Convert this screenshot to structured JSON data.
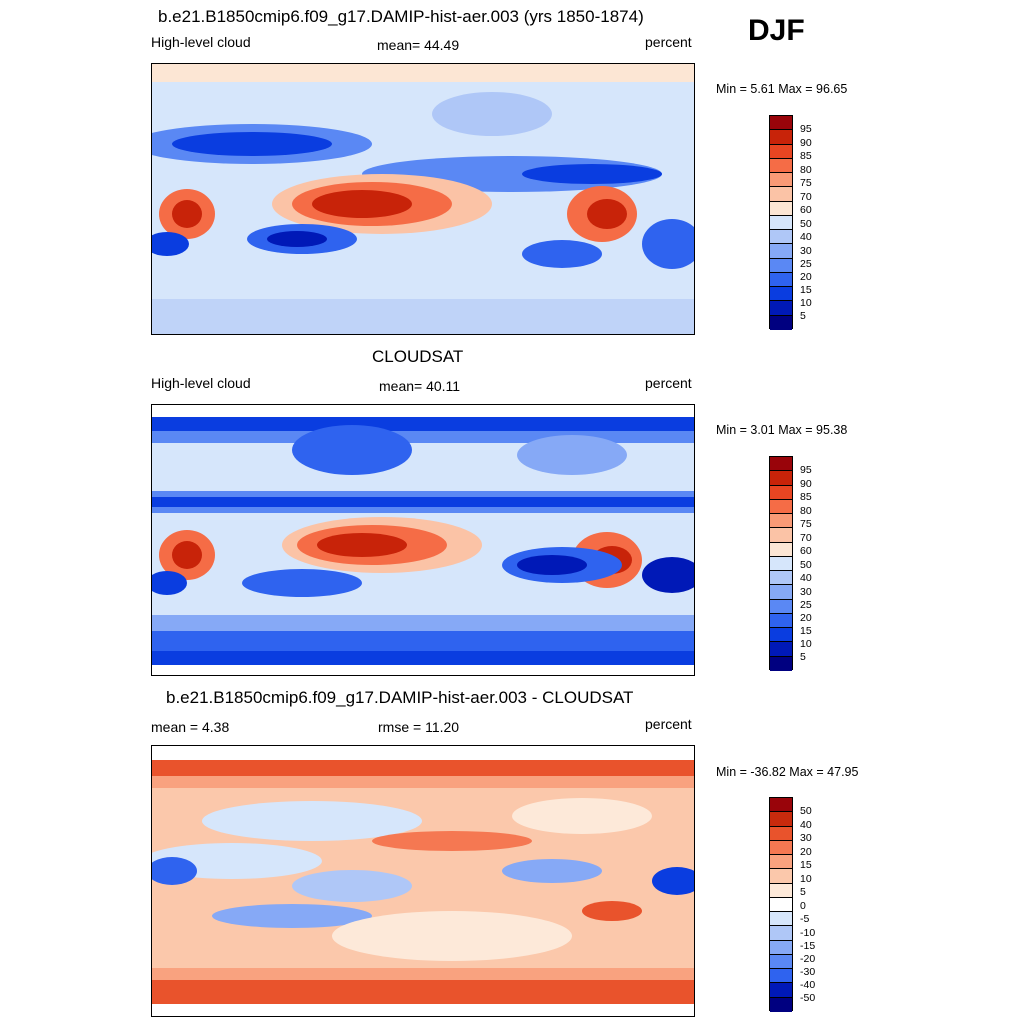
{
  "season_label": "DJF",
  "colors": {
    "abs_levels": [
      "#000080",
      "#0019b7",
      "#0a3de0",
      "#2f63ef",
      "#5a88f4",
      "#86a9f6",
      "#afc7f7",
      "#d6e6fb",
      "#fce6d4",
      "#fbc3a6",
      "#f99a76",
      "#f56c46",
      "#e84522",
      "#c82309",
      "#99040a"
    ],
    "diff_levels": [
      "#000080",
      "#0019b7",
      "#0a3de0",
      "#2f63ef",
      "#5a88f4",
      "#86a9f6",
      "#afc7f7",
      "#d6e6fb",
      "#fde9d9",
      "#fbc8ab",
      "#f9a27f",
      "#f57852",
      "#e9532c",
      "#c82a0d",
      "#99040a"
    ]
  },
  "panels": [
    {
      "title": "b.e21.B1850cmip6.f09_g17.DAMIP-hist-aer.003 (yrs 1850-1874)",
      "left_label": "High-level cloud",
      "center_label": "mean=  44.49",
      "right_label": "percent",
      "minmax": "Min =   5.61 Max =  96.65",
      "colorbar_labels": [
        "95",
        "90",
        "85",
        "80",
        "75",
        "70",
        "60",
        "50",
        "40",
        "30",
        "25",
        "20",
        "15",
        "10",
        "5"
      ]
    },
    {
      "title": "CLOUDSAT",
      "left_label": "High-level cloud",
      "center_label": "mean=  40.11",
      "right_label": "percent",
      "minmax": "Min =   3.01 Max =  95.38",
      "colorbar_labels": [
        "95",
        "90",
        "85",
        "80",
        "75",
        "70",
        "60",
        "50",
        "40",
        "30",
        "25",
        "20",
        "15",
        "10",
        "5"
      ]
    },
    {
      "title": "b.e21.B1850cmip6.f09_g17.DAMIP-hist-aer.003 - CLOUDSAT",
      "left_label": "mean =   4.38",
      "center_label": "rmse =  11.20",
      "right_label": "percent",
      "minmax": "Min = -36.82 Max =  47.95",
      "colorbar_labels": [
        "50",
        "40",
        "30",
        "20",
        "15",
        "10",
        "5",
        "0",
        "-5",
        "-10",
        "-15",
        "-20",
        "-30",
        "-40",
        "-50"
      ]
    }
  ]
}
